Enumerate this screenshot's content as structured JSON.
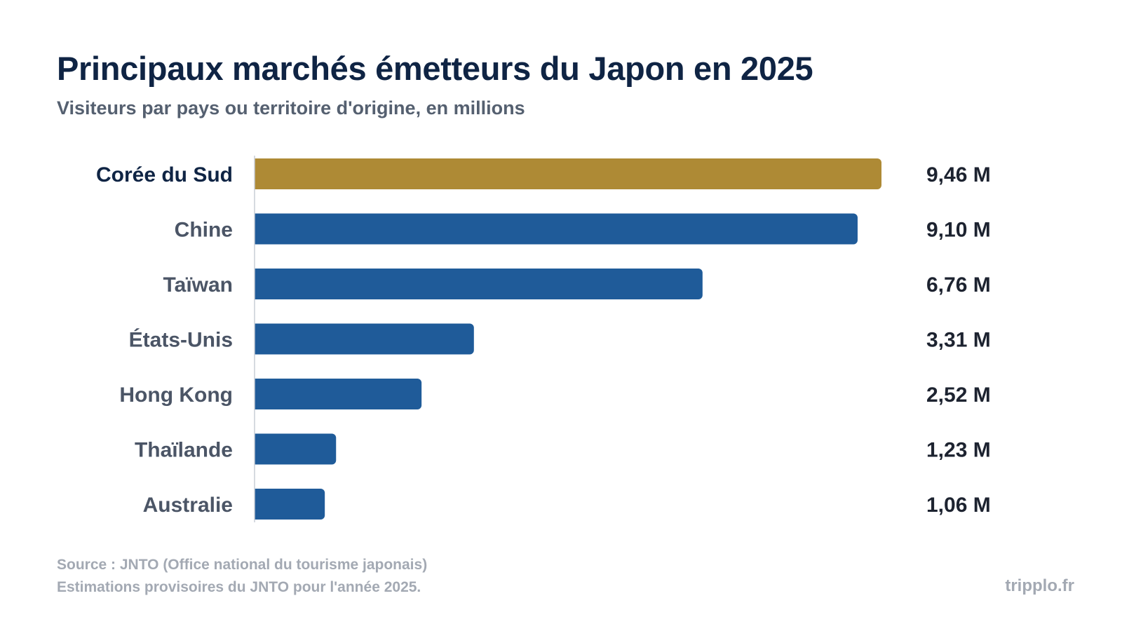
{
  "colors": {
    "highlight": "#ae8a35",
    "bar": "#1f5b99",
    "title": "#0f2444",
    "category_highlight": "#0f2444",
    "category": "#4b5566",
    "value": "#1d2330",
    "axis": "#c9ced6"
  },
  "chart_data": {
    "type": "bar",
    "orientation": "horizontal",
    "title": "Principaux marchés émetteurs du Japon en 2025",
    "subtitle": "Visiteurs par pays ou territoire d'origine, en millions",
    "categories": [
      "Corée du Sud",
      "Chine",
      "Taïwan",
      "États-Unis",
      "Hong Kong",
      "Thaïlande",
      "Australie"
    ],
    "values": [
      9.46,
      9.1,
      6.76,
      3.31,
      2.52,
      1.23,
      1.06
    ],
    "value_labels": [
      "9,46 M",
      "9,10 M",
      "6,76 M",
      "3,31 M",
      "2,52 M",
      "1,23 M",
      "1,06 M"
    ],
    "highlight_index": 0,
    "xlim": [
      0,
      9.46
    ],
    "grid": false,
    "legend": "none"
  },
  "footer": {
    "source": "Source : JNTO (Office national du tourisme japonais)",
    "note": "Estimations provisoires du JNTO pour l'année 2025.",
    "brand": "tripplo.fr"
  }
}
